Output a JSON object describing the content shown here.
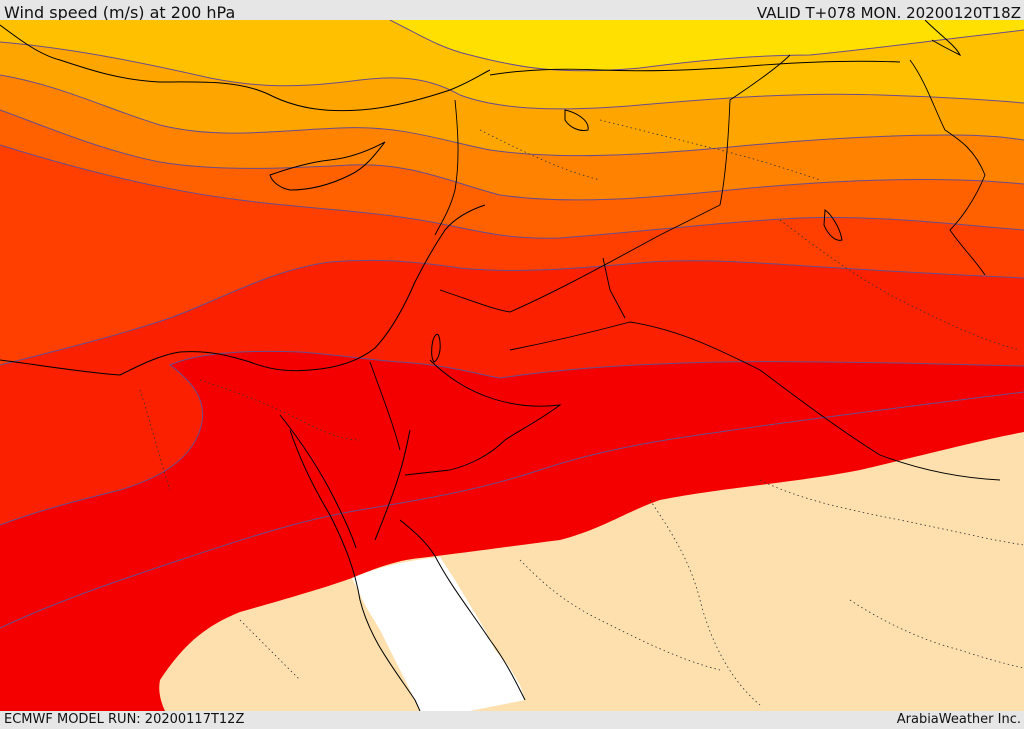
{
  "header": {
    "title": "Wind speed (m/s) at 200 hPa",
    "valid": "VALID T+078 MON. 20200120T18Z"
  },
  "footer": {
    "model_run": "ECMWF MODEL RUN: 20200117T12Z",
    "credit": "ArabiaWeather Inc."
  },
  "map": {
    "field": "wind speed",
    "level": "200 hPa",
    "colors": {
      "band_1": "#ffe000",
      "band_2": "#ffc000",
      "band_3": "#ffa500",
      "band_4": "#ff8200",
      "band_5": "#ff6000",
      "band_6": "#ff3f00",
      "band_7": "#fa2000",
      "band_8": "#f50000",
      "land_low_wind": "#fde0ad",
      "sea_low_wind": "#ffffff",
      "contour": "#6a4c8c",
      "coastline": "#000000"
    }
  }
}
